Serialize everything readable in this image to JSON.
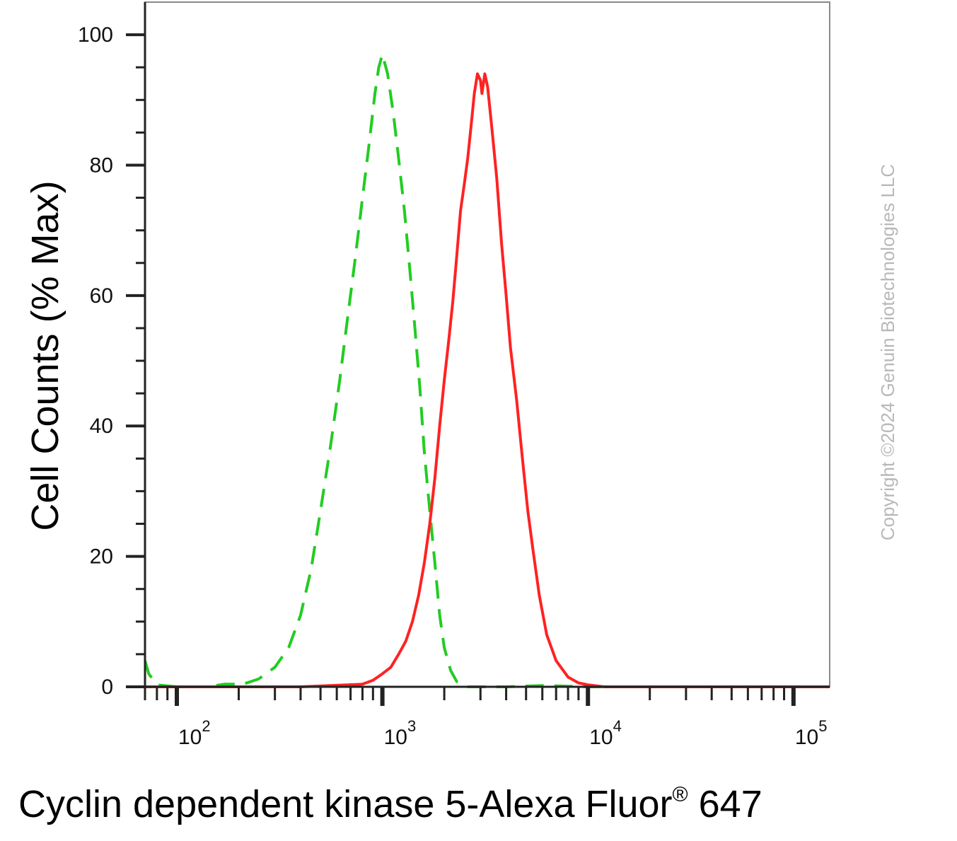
{
  "chart_data": {
    "type": "line",
    "title": "",
    "xlabel": "Cyclin dependent kinase 5-Alexa Fluor",
    "xlabel_sup": "®",
    "xlabel_suffix": " 647",
    "ylabel": "Cell Counts (% Max)",
    "xscale": "log",
    "xlim": [
      70,
      150000
    ],
    "ylim": [
      0,
      105
    ],
    "grid": false,
    "legend": "none",
    "y_ticks": [
      {
        "value": 0,
        "label": "0"
      },
      {
        "value": 20,
        "label": "20"
      },
      {
        "value": 40,
        "label": "40"
      },
      {
        "value": 60,
        "label": "60"
      },
      {
        "value": 80,
        "label": "80"
      },
      {
        "value": 100,
        "label": "100"
      }
    ],
    "x_ticks": [
      {
        "value": 100,
        "base": "10",
        "exp": "2"
      },
      {
        "value": 1000,
        "base": "10",
        "exp": "3"
      },
      {
        "value": 10000,
        "base": "10",
        "exp": "4"
      },
      {
        "value": 100000,
        "base": "10",
        "exp": "5"
      }
    ],
    "series": [
      {
        "color": "#22cc22",
        "dash": true,
        "points": [
          [
            70,
            4
          ],
          [
            73,
            2
          ],
          [
            80,
            0.3
          ],
          [
            100,
            0
          ],
          [
            140,
            0
          ],
          [
            170,
            0.4
          ],
          [
            210,
            0.4
          ],
          [
            250,
            1.2
          ],
          [
            300,
            3
          ],
          [
            350,
            6
          ],
          [
            400,
            11
          ],
          [
            450,
            18
          ],
          [
            500,
            27
          ],
          [
            560,
            37
          ],
          [
            620,
            47
          ],
          [
            680,
            57
          ],
          [
            740,
            66
          ],
          [
            800,
            75
          ],
          [
            860,
            83
          ],
          [
            920,
            91
          ],
          [
            960,
            95
          ],
          [
            1000,
            97
          ],
          [
            1060,
            94
          ],
          [
            1130,
            88
          ],
          [
            1200,
            81
          ],
          [
            1280,
            73
          ],
          [
            1360,
            64
          ],
          [
            1440,
            55
          ],
          [
            1520,
            46
          ],
          [
            1600,
            36
          ],
          [
            1700,
            27
          ],
          [
            1800,
            19
          ],
          [
            1900,
            11
          ],
          [
            2000,
            6
          ],
          [
            2150,
            2.5
          ],
          [
            2300,
            0.8
          ],
          [
            2600,
            0
          ],
          [
            4000,
            0
          ],
          [
            6000,
            0.2
          ],
          [
            10000,
            0
          ],
          [
            150000,
            0
          ]
        ]
      },
      {
        "color": "#ff2222",
        "dash": false,
        "points": [
          [
            70,
            0
          ],
          [
            400,
            0
          ],
          [
            800,
            0.4
          ],
          [
            900,
            1
          ],
          [
            1000,
            2
          ],
          [
            1100,
            3
          ],
          [
            1200,
            5
          ],
          [
            1300,
            7
          ],
          [
            1400,
            10
          ],
          [
            1500,
            14
          ],
          [
            1600,
            19
          ],
          [
            1700,
            25
          ],
          [
            1800,
            32
          ],
          [
            1900,
            40
          ],
          [
            2000,
            47
          ],
          [
            2100,
            53
          ],
          [
            2200,
            59
          ],
          [
            2300,
            66
          ],
          [
            2400,
            73
          ],
          [
            2500,
            77
          ],
          [
            2600,
            81
          ],
          [
            2700,
            86
          ],
          [
            2800,
            91
          ],
          [
            2900,
            94
          ],
          [
            3000,
            93
          ],
          [
            3050,
            91
          ],
          [
            3150,
            94
          ],
          [
            3250,
            92
          ],
          [
            3400,
            86
          ],
          [
            3600,
            78
          ],
          [
            3800,
            68
          ],
          [
            4000,
            60
          ],
          [
            4200,
            52
          ],
          [
            4500,
            44
          ],
          [
            4800,
            35
          ],
          [
            5100,
            27
          ],
          [
            5400,
            21
          ],
          [
            5800,
            14
          ],
          [
            6300,
            8
          ],
          [
            7000,
            4
          ],
          [
            8000,
            1.5
          ],
          [
            9000,
            0.6
          ],
          [
            10000,
            0.3
          ],
          [
            12000,
            0
          ],
          [
            150000,
            0
          ]
        ]
      }
    ]
  },
  "watermark": "Copyright ©2024 Genuin Biotechnologies LLC"
}
